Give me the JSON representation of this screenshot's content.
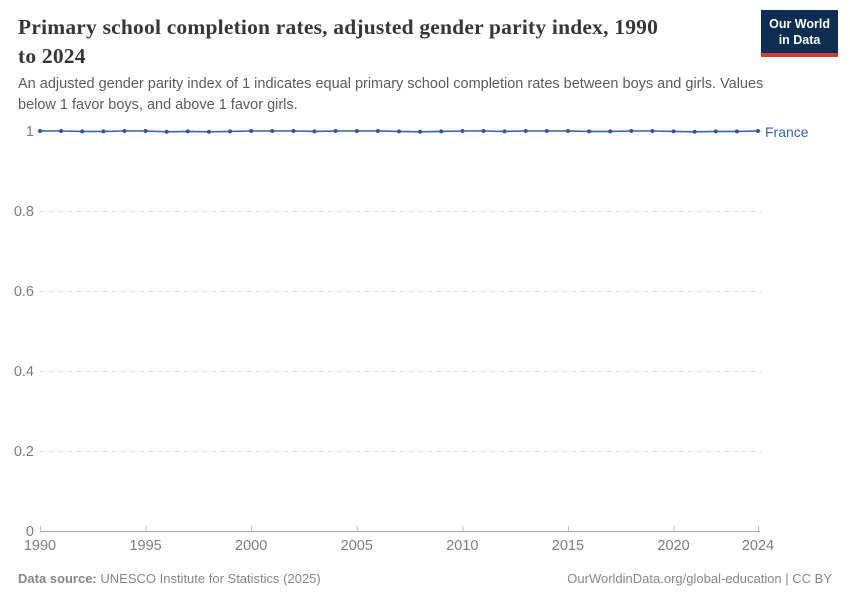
{
  "header": {
    "title_lines": [
      "Primary school completion rates, adjusted gender parity index, 1990",
      "to 2024"
    ],
    "subtitle_lines": [
      "An adjusted gender parity index of 1 indicates equal primary school completion rates between boys and girls. Values",
      "below 1 favor boys, and above 1 favor girls."
    ],
    "logo": {
      "line1": "Our World",
      "line2": "in Data",
      "bg_color": "#0d2d52",
      "accent_color": "#cf3d34"
    }
  },
  "chart_data": {
    "type": "line",
    "title": "Primary school completion rates, adjusted gender parity index, 1990 to 2024",
    "subtitle": "An adjusted gender parity index of 1 indicates equal primary school completion rates between boys and girls. Values below 1 favor boys, and above 1 favor girls.",
    "xlabel": "",
    "ylabel": "",
    "xlim": [
      1990,
      2024
    ],
    "ylim": [
      0,
      1
    ],
    "x_ticks": [
      1990,
      1995,
      2000,
      2005,
      2010,
      2015,
      2020,
      2024
    ],
    "y_ticks": [
      0,
      0.2,
      0.4,
      0.6,
      0.8,
      1
    ],
    "grid": "horizontal dashed",
    "legend": "inline label at right end of line",
    "x": [
      1990,
      1991,
      1992,
      1993,
      1994,
      1995,
      1996,
      1997,
      1998,
      1999,
      2000,
      2001,
      2002,
      2003,
      2004,
      2005,
      2006,
      2007,
      2008,
      2009,
      2010,
      2011,
      2012,
      2013,
      2014,
      2015,
      2016,
      2017,
      2018,
      2019,
      2020,
      2021,
      2022,
      2023,
      2024
    ],
    "series": [
      {
        "name": "France",
        "color": "#3d64a8",
        "marker_color": "#34559c",
        "values": [
          1.0,
          1.0,
          0.999,
          0.999,
          1.0,
          1.0,
          0.998,
          0.999,
          0.998,
          0.999,
          1.0,
          1.0,
          1.0,
          0.999,
          1.0,
          1.0,
          1.0,
          0.999,
          0.998,
          0.999,
          1.0,
          1.0,
          0.999,
          1.0,
          1.0,
          1.0,
          0.999,
          0.999,
          1.0,
          1.0,
          0.999,
          0.998,
          0.999,
          0.999,
          1.0
        ]
      }
    ]
  },
  "footer": {
    "data_source_label": "Data source:",
    "data_source_value": "UNESCO Institute for Statistics (2025)",
    "credit": "OurWorldinData.org/global-education | CC BY"
  }
}
